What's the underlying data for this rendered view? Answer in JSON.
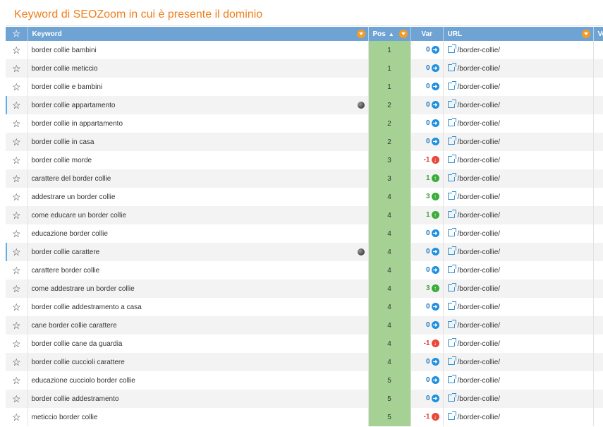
{
  "panel": {
    "title": "Keyword di SEOZoom in cui è presente il dominio"
  },
  "table": {
    "columns": {
      "keyword": "Keyword",
      "pos": "Pos",
      "var": "Var",
      "url": "URL",
      "more": "Vo"
    },
    "status_colors": {
      "flat": "#1f8fe0",
      "up": "#3bab3b",
      "down": "#e8483a",
      "pos_bg": "#a5d195",
      "header_bg": "#6fa3d4",
      "title": "#f07e1b"
    },
    "rows": [
      {
        "keyword": "border collie bambini",
        "pos": "1",
        "var": "0",
        "trend": "flat",
        "url": "/border-collie/",
        "globe": false
      },
      {
        "keyword": "border collie meticcio",
        "pos": "1",
        "var": "0",
        "trend": "flat",
        "url": "/border-collie/",
        "globe": false
      },
      {
        "keyword": "border collie e bambini",
        "pos": "1",
        "var": "0",
        "trend": "flat",
        "url": "/border-collie/",
        "globe": false
      },
      {
        "keyword": "border collie appartamento",
        "pos": "2",
        "var": "0",
        "trend": "flat",
        "url": "/border-collie/",
        "globe": true
      },
      {
        "keyword": "border collie in appartamento",
        "pos": "2",
        "var": "0",
        "trend": "flat",
        "url": "/border-collie/",
        "globe": false
      },
      {
        "keyword": "border collie in casa",
        "pos": "2",
        "var": "0",
        "trend": "flat",
        "url": "/border-collie/",
        "globe": false
      },
      {
        "keyword": "border collie morde",
        "pos": "3",
        "var": "-1",
        "trend": "down",
        "url": "/border-collie/",
        "globe": false
      },
      {
        "keyword": "carattere del border collie",
        "pos": "3",
        "var": "1",
        "trend": "up",
        "url": "/border-collie/",
        "globe": false
      },
      {
        "keyword": "addestrare un border collie",
        "pos": "4",
        "var": "3",
        "trend": "up",
        "url": "/border-collie/",
        "globe": false
      },
      {
        "keyword": "come educare un border collie",
        "pos": "4",
        "var": "1",
        "trend": "up",
        "url": "/border-collie/",
        "globe": false
      },
      {
        "keyword": "educazione border collie",
        "pos": "4",
        "var": "0",
        "trend": "flat",
        "url": "/border-collie/",
        "globe": false
      },
      {
        "keyword": "border collie carattere",
        "pos": "4",
        "var": "0",
        "trend": "flat",
        "url": "/border-collie/",
        "globe": true
      },
      {
        "keyword": "carattere border collie",
        "pos": "4",
        "var": "0",
        "trend": "flat",
        "url": "/border-collie/",
        "globe": false
      },
      {
        "keyword": "come addestrare un border collie",
        "pos": "4",
        "var": "3",
        "trend": "up",
        "url": "/border-collie/",
        "globe": false
      },
      {
        "keyword": "border collie addestramento a casa",
        "pos": "4",
        "var": "0",
        "trend": "flat",
        "url": "/border-collie/",
        "globe": false
      },
      {
        "keyword": "cane border collie carattere",
        "pos": "4",
        "var": "0",
        "trend": "flat",
        "url": "/border-collie/",
        "globe": false
      },
      {
        "keyword": "border collie cane da guardia",
        "pos": "4",
        "var": "-1",
        "trend": "down",
        "url": "/border-collie/",
        "globe": false
      },
      {
        "keyword": "border collie cuccioli carattere",
        "pos": "4",
        "var": "0",
        "trend": "flat",
        "url": "/border-collie/",
        "globe": false
      },
      {
        "keyword": "educazione cucciolo border collie",
        "pos": "5",
        "var": "0",
        "trend": "flat",
        "url": "/border-collie/",
        "globe": false
      },
      {
        "keyword": "border collie addestramento",
        "pos": "5",
        "var": "0",
        "trend": "flat",
        "url": "/border-collie/",
        "globe": false
      },
      {
        "keyword": "meticcio border collie",
        "pos": "5",
        "var": "-1",
        "trend": "down",
        "url": "/border-collie/",
        "globe": false
      }
    ]
  }
}
